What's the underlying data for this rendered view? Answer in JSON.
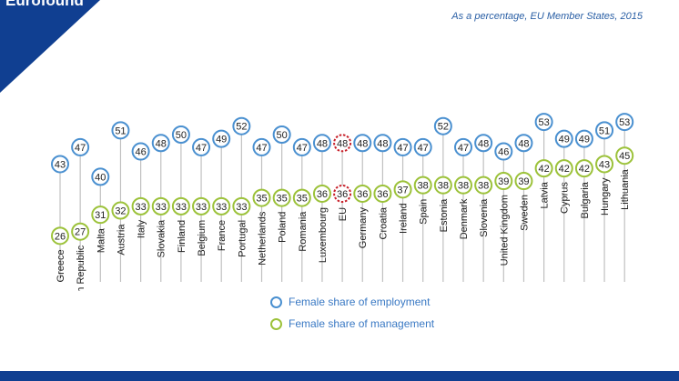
{
  "brand": "Eurofound",
  "subtitle": "As a percentage, EU Member States, 2015",
  "colors": {
    "employment": "#4a90d0",
    "management": "#9cc23a",
    "eu_ring": "#c8202a",
    "brand_blue": "#103f91",
    "stem": "#c0c0c0"
  },
  "chart_data": {
    "type": "dot-range",
    "title": "As a percentage, EU Member States, 2015",
    "categories": [
      "Greece",
      "Czech Republic",
      "Malta",
      "Austria",
      "Italy",
      "Slovakia",
      "Finland",
      "Belgium",
      "France",
      "Portugal",
      "Netherlands",
      "Poland",
      "Romania",
      "Luxembourg",
      "EU",
      "Germany",
      "Croatia",
      "Ireland",
      "Spain",
      "Estonia",
      "Denmark",
      "Slovenia",
      "United Kingdom",
      "Sweden",
      "Latvia",
      "Cyprus",
      "Bulgaria",
      "Hungary",
      "Lithuania"
    ],
    "highlight": "EU",
    "series": [
      {
        "name": "Female share of employment",
        "values": [
          43,
          47,
          40,
          51,
          46,
          48,
          50,
          47,
          49,
          52,
          47,
          50,
          47,
          48,
          48,
          48,
          48,
          47,
          47,
          52,
          47,
          48,
          46,
          48,
          53,
          49,
          49,
          51,
          53
        ]
      },
      {
        "name": "Female share of management",
        "values": [
          26,
          27,
          31,
          32,
          33,
          33,
          33,
          33,
          33,
          33,
          35,
          35,
          35,
          36,
          36,
          36,
          36,
          37,
          38,
          38,
          38,
          38,
          39,
          39,
          42,
          42,
          42,
          43,
          45
        ]
      }
    ]
  },
  "legend": {
    "employment_label": "Female share of employment",
    "management_label": "Female share of management"
  }
}
